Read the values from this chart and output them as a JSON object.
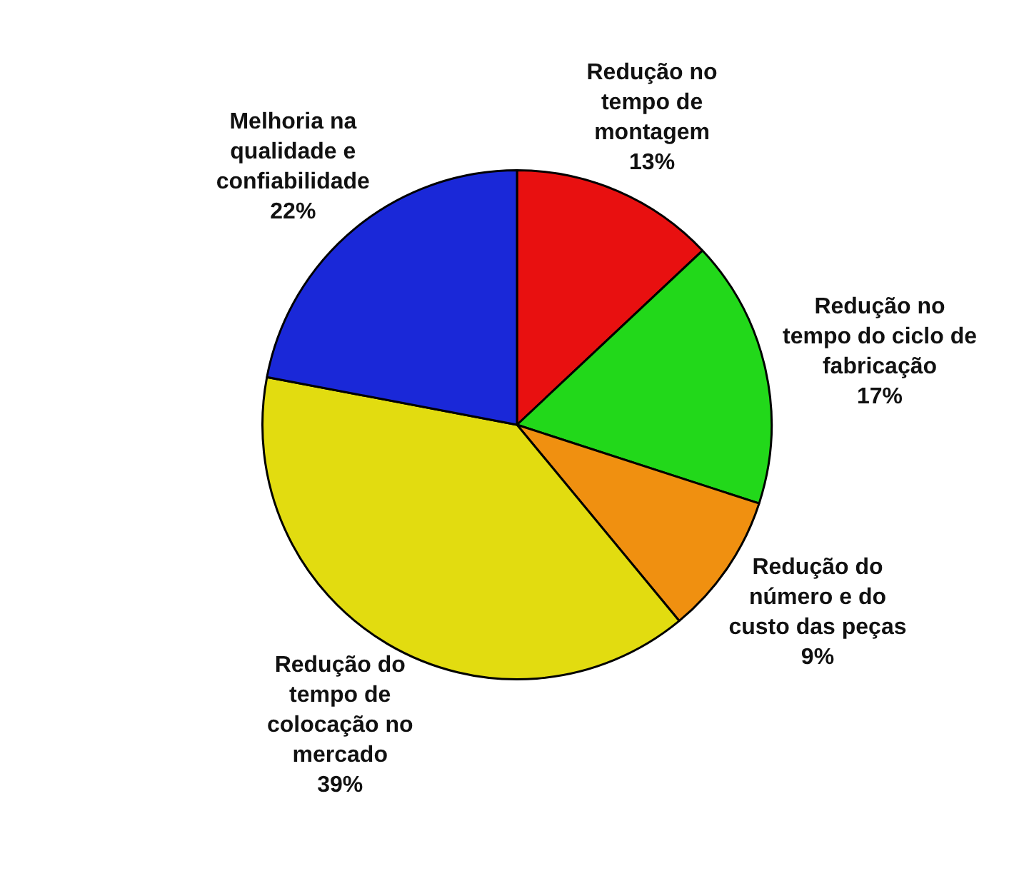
{
  "chart_data": {
    "type": "pie",
    "categories": [
      "Redução no tempo de montagem",
      "Redução no tempo do ciclo de fabricação",
      "Redução do número e do custo das peças",
      "Redução do tempo de colocação no mercado",
      "Melhoria na qualidade e confiabilidade"
    ],
    "values": [
      13,
      17,
      9,
      39,
      22
    ],
    "value_labels": [
      "13%",
      "17%",
      "9%",
      "39%",
      "22%"
    ],
    "colors": [
      "#e81010",
      "#22d81a",
      "#f09010",
      "#e2dc10",
      "#1a28d8"
    ],
    "legend": false
  }
}
